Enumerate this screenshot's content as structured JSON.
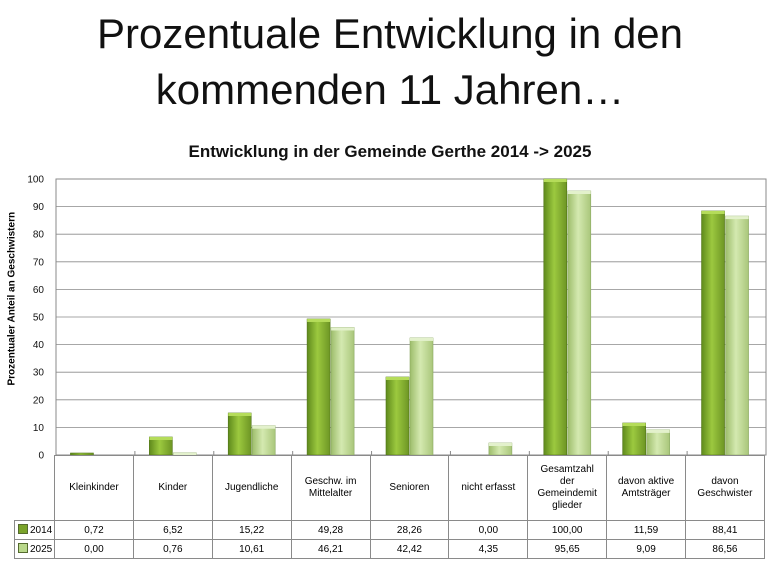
{
  "slide": {
    "title_line1": "Prozentuale Entwicklung in den",
    "title_line2": "kommenden 11 Jahren…"
  },
  "chart_data": {
    "type": "bar",
    "title": "Entwicklung in der Gemeinde Gerthe 2014 -> 2025",
    "xlabel": "",
    "ylabel": "Prozentualer Anteil an Geschwistern",
    "ylim": [
      0,
      100
    ],
    "yticks": [
      "0",
      "10",
      "20",
      "30",
      "40",
      "50",
      "60",
      "70",
      "80",
      "90",
      "100"
    ],
    "grid": true,
    "legend": "data-table",
    "categories": [
      "Kleinkinder",
      "Kinder",
      "Jugendliche",
      "Geschw. im Mittelalter",
      "Senioren",
      "nicht erfasst",
      "Gesamtzahl der Gemeindemitglieder",
      "davon aktive Amtsträger",
      "davon Geschwister"
    ],
    "category_display": [
      [
        "Kleinkinder"
      ],
      [
        "Kinder"
      ],
      [
        "Jugendliche"
      ],
      [
        "Geschw. im",
        "Mittelalter"
      ],
      [
        "Senioren"
      ],
      [
        "nicht erfasst"
      ],
      [
        "Gesamtzahl",
        "der",
        "Gemeindemit",
        "glieder"
      ],
      [
        "davon aktive",
        "Amtsträger"
      ],
      [
        "davon",
        "Geschwister"
      ]
    ],
    "series": [
      {
        "name": "2014",
        "color": "#7aa32a",
        "values": [
          0.72,
          6.52,
          15.22,
          49.28,
          28.26,
          0.0,
          100.0,
          11.59,
          88.41
        ],
        "labels": [
          "0,72",
          "6,52",
          "15,22",
          "49,28",
          "28,26",
          "0,00",
          "100,00",
          "11,59",
          "88,41"
        ]
      },
      {
        "name": "2025",
        "color": "#b9d88a",
        "values": [
          0.0,
          0.76,
          10.61,
          46.21,
          42.42,
          4.35,
          95.65,
          9.09,
          86.56
        ],
        "labels": [
          "0,00",
          "0,76",
          "10,61",
          "46,21",
          "42,42",
          "4,35",
          "95,65",
          "9,09",
          "86,56"
        ]
      }
    ]
  }
}
